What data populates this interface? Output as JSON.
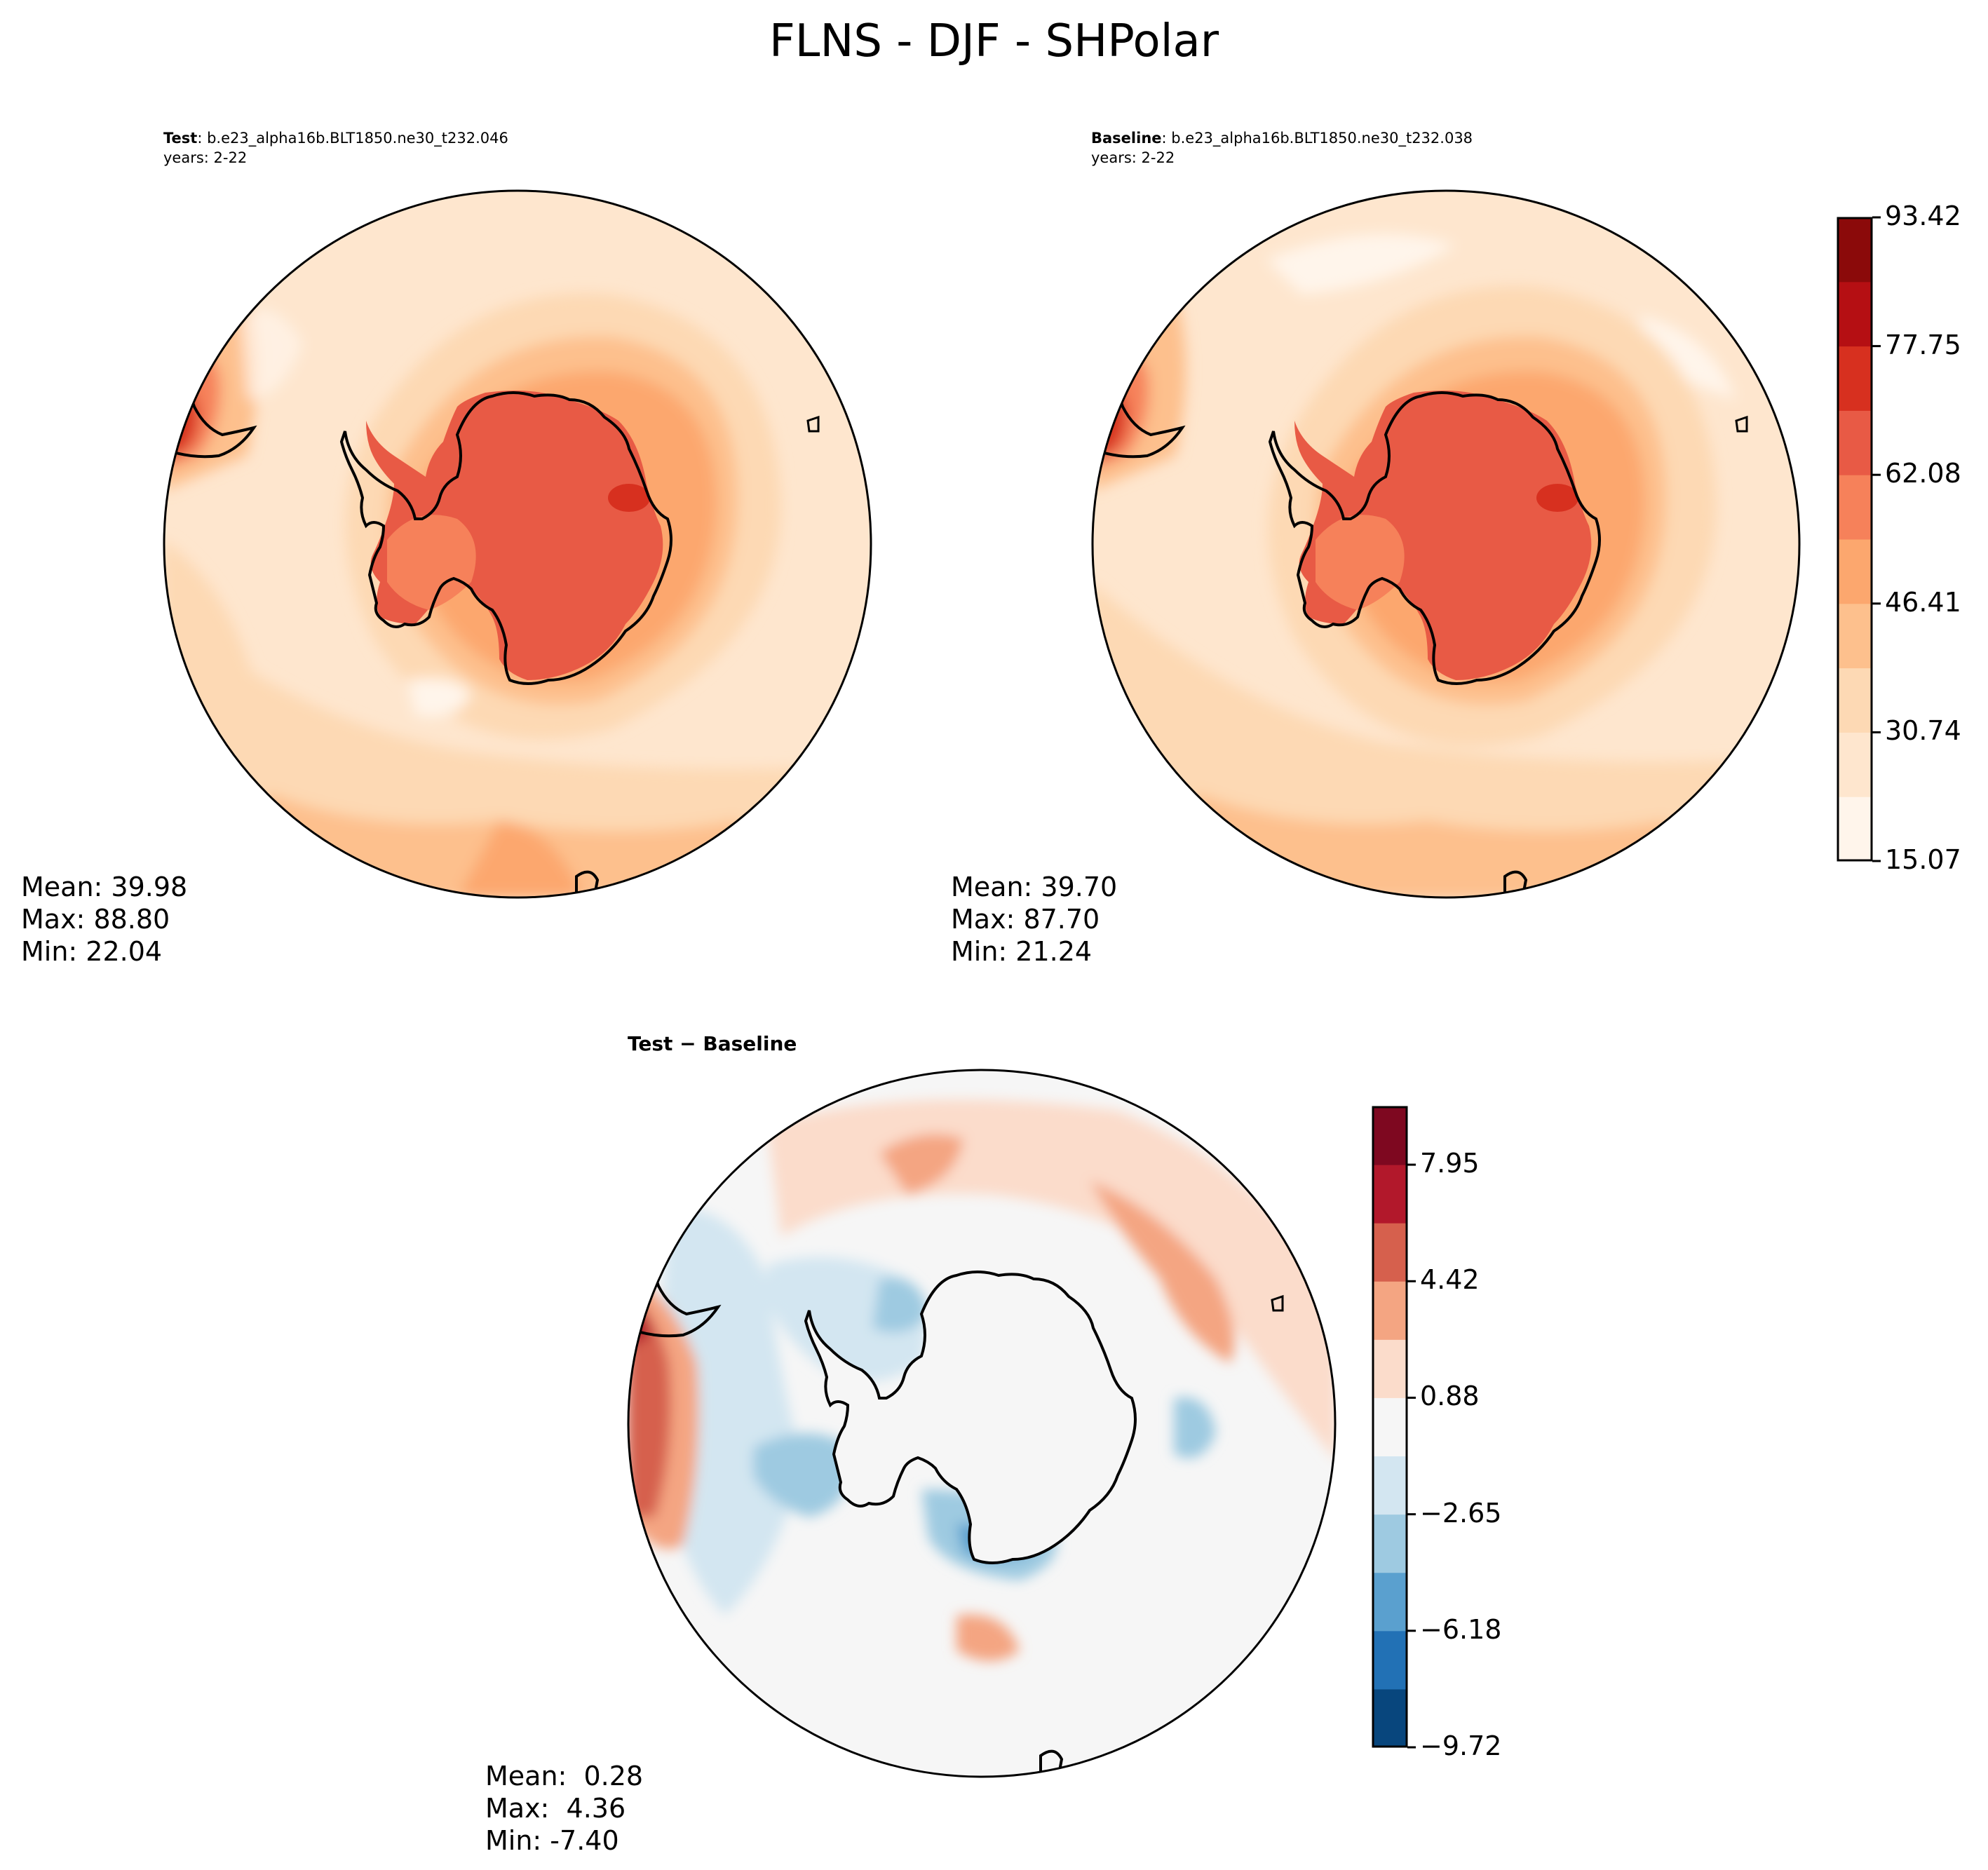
{
  "title": "FLNS - DJF - SHPolar",
  "panels": [
    {
      "id": "test",
      "label": "Test",
      "case": ": b.e23_alpha16b.BLT1850.ne30_t232.046",
      "years": "years: 2-22",
      "stats": {
        "mean": "Mean: 39.98",
        "max": "Max: 88.80",
        "min": "Min: 22.04"
      }
    },
    {
      "id": "baseline",
      "label": "Baseline",
      "case": ": b.e23_alpha16b.BLT1850.ne30_t232.038",
      "years": "years: 2-22",
      "stats": {
        "mean": "Mean: 39.70",
        "max": "Max: 87.70",
        "min": "Min: 21.24"
      }
    },
    {
      "id": "diff",
      "label": "Test − Baseline",
      "stats": {
        "mean": "Mean:  0.28",
        "max": "Max:  4.36",
        "min": "Min: -7.40"
      }
    }
  ],
  "colorbars": {
    "main": {
      "ticks": [
        "15.07",
        "30.74",
        "46.41",
        "62.08",
        "77.75",
        "93.42"
      ],
      "colors": [
        "#fff5eb",
        "#fee6ce",
        "#fdd9b4",
        "#fdc08d",
        "#fca76e",
        "#f6815a",
        "#e85a45",
        "#d7301f",
        "#b50f13",
        "#8b0a0a"
      ]
    },
    "diff": {
      "ticks": [
        "−9.72",
        "−6.18",
        "−2.65",
        "0.88",
        "4.42",
        "7.95"
      ],
      "colors": [
        "#08467d",
        "#2271b5",
        "#5aa0cf",
        "#9ecae1",
        "#d3e6f1",
        "#f6f6f6",
        "#fbdccb",
        "#f4a582",
        "#d6604d",
        "#b2182b",
        "#7e0820"
      ]
    }
  }
}
